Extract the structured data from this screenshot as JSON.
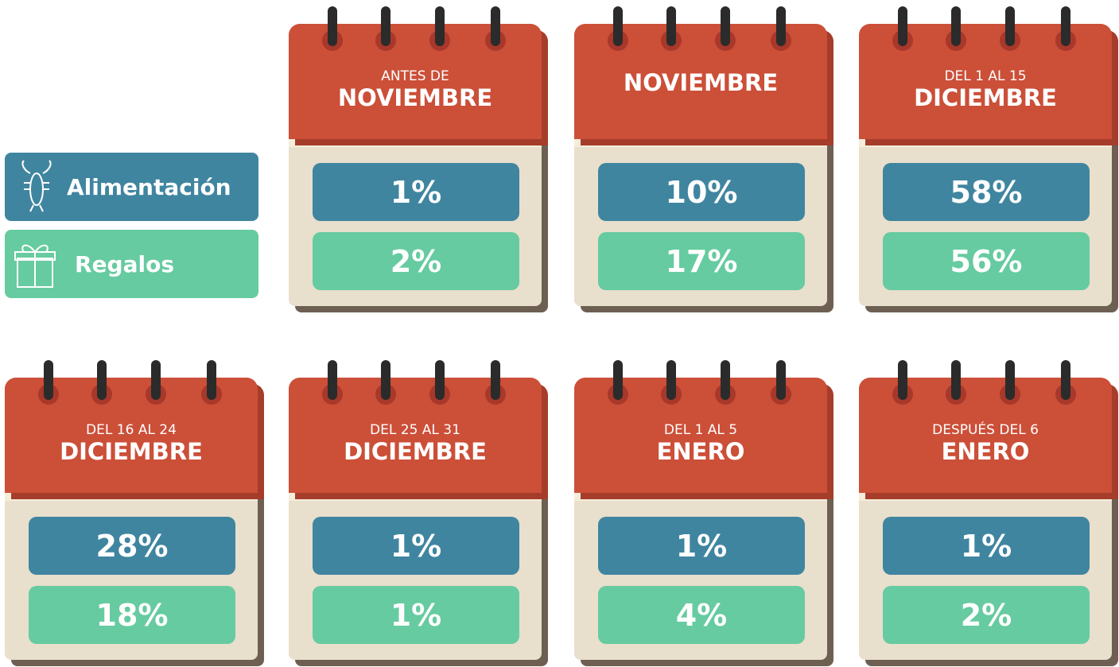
{
  "legend": [
    {
      "label": "Alimentación"
    },
    {
      "label": "Regalos"
    }
  ],
  "calendars": [
    {
      "subtitle": "ANTES DE",
      "title": "NOVIEMBRE",
      "food": "1%",
      "gifts": "2%"
    },
    {
      "title": "NOVIEMBRE",
      "food": "10%",
      "gifts": "17%"
    },
    {
      "subtitle": "DEL 1 AL 15",
      "title": "DICIEMBRE",
      "food": "58%",
      "gifts": "56%"
    },
    {
      "subtitle": "DEL 16 AL 24",
      "title": "DICIEMBRE",
      "food": "28%",
      "gifts": "18%"
    },
    {
      "subtitle": "DEL 25 AL 31",
      "title": "DICIEMBRE",
      "food": "1%",
      "gifts": "1%"
    },
    {
      "subtitle": "DEL 1 AL 5",
      "title": "ENERO",
      "food": "1%",
      "gifts": "4%"
    },
    {
      "subtitle": "DESPUÉS DEL 6",
      "title": "ENERO",
      "food": "1%",
      "gifts": "2%"
    }
  ]
}
